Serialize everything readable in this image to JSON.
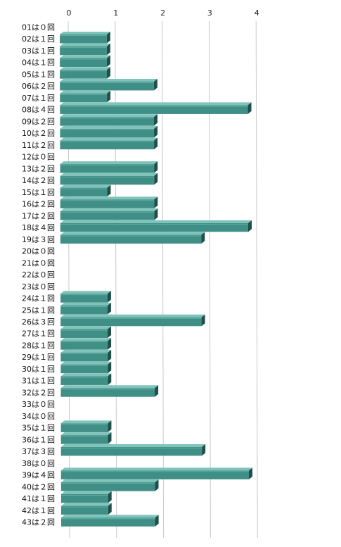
{
  "chart_data": {
    "type": "bar",
    "orientation": "horizontal",
    "categories": [
      "01は０回",
      "02は１回",
      "03は１回",
      "04は１回",
      "05は１回",
      "06は２回",
      "07は１回",
      "08は４回",
      "09は２回",
      "10は２回",
      "11は２回",
      "12は０回",
      "13は２回",
      "14は２回",
      "15は１回",
      "16は２回",
      "17は２回",
      "18は４回",
      "19は３回",
      "20は０回",
      "21は０回",
      "22は０回",
      "23は０回",
      "24は１回",
      "25は１回",
      "26は３回",
      "27は１回",
      "28は１回",
      "29は１回",
      "30は１回",
      "31は１回",
      "32は２回",
      "33は０回",
      "34は０回",
      "35は１回",
      "36は１回",
      "37は３回",
      "38は０回",
      "39は４回",
      "40は２回",
      "41は１回",
      "42は１回",
      "43は２回"
    ],
    "values": [
      0,
      1,
      1,
      1,
      1,
      2,
      1,
      4,
      2,
      2,
      2,
      0,
      2,
      2,
      1,
      2,
      2,
      4,
      3,
      0,
      0,
      0,
      0,
      1,
      1,
      3,
      1,
      1,
      1,
      1,
      1,
      2,
      0,
      0,
      1,
      1,
      3,
      0,
      4,
      2,
      1,
      1,
      2
    ],
    "x_ticks": [
      "0",
      "1",
      "2",
      "3",
      "4"
    ],
    "xlim": [
      0,
      4
    ],
    "grid": true,
    "title": "",
    "xlabel": "",
    "ylabel": "",
    "colors": {
      "bar_front": "#3f8f87",
      "bar_top": "#7fc4bb",
      "bar_side": "#1f4f4a",
      "grid": "#c8c8c8"
    }
  }
}
